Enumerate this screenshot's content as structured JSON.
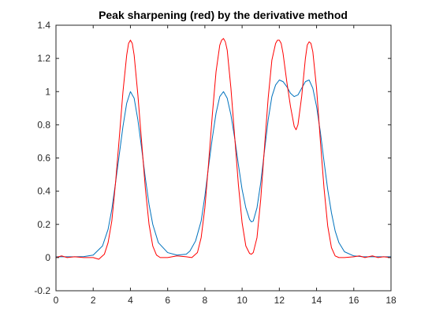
{
  "chart_data": {
    "type": "line",
    "title": "Peak sharpening (red) by the derivative method",
    "xlabel": "",
    "ylabel": "",
    "xlim": [
      0,
      18
    ],
    "ylim": [
      -0.2,
      1.4
    ],
    "x_ticks": [
      "0",
      "2",
      "4",
      "6",
      "8",
      "10",
      "12",
      "14",
      "16",
      "18"
    ],
    "y_ticks": [
      "-0.2",
      "0",
      "0.2",
      "0.4",
      "0.6",
      "0.8",
      "1",
      "1.2",
      "1.4"
    ],
    "grid": false,
    "legend": "none",
    "series": [
      {
        "color": "#0072bd",
        "x": [
          0,
          0.5,
          1,
          1.5,
          2,
          2.5,
          2.8,
          3,
          3.2,
          3.4,
          3.6,
          3.8,
          4,
          4.2,
          4.4,
          4.6,
          4.8,
          5,
          5.2,
          5.5,
          6,
          6.5,
          7,
          7.2,
          7.5,
          7.8,
          8,
          8.2,
          8.4,
          8.6,
          8.8,
          9,
          9.2,
          9.4,
          9.6,
          9.8,
          10,
          10.2,
          10.4,
          10.5,
          10.6,
          10.8,
          11,
          11.2,
          11.4,
          11.6,
          11.8,
          12,
          12.2,
          12.4,
          12.6,
          12.8,
          13,
          13.2,
          13.4,
          13.6,
          13.8,
          14,
          14.2,
          14.4,
          14.6,
          14.8,
          15,
          15.2,
          15.5,
          16,
          16.5,
          17,
          17.5,
          18
        ],
        "y": [
          0.005,
          0.005,
          0.005,
          0.006,
          0.015,
          0.07,
          0.17,
          0.29,
          0.45,
          0.62,
          0.79,
          0.93,
          1.0,
          0.96,
          0.83,
          0.66,
          0.48,
          0.32,
          0.2,
          0.09,
          0.03,
          0.015,
          0.02,
          0.04,
          0.1,
          0.22,
          0.37,
          0.55,
          0.72,
          0.87,
          0.97,
          1.0,
          0.96,
          0.86,
          0.72,
          0.56,
          0.41,
          0.3,
          0.23,
          0.215,
          0.22,
          0.3,
          0.45,
          0.64,
          0.83,
          0.97,
          1.04,
          1.07,
          1.06,
          1.03,
          0.99,
          0.97,
          0.98,
          1.02,
          1.06,
          1.07,
          1.02,
          0.91,
          0.76,
          0.58,
          0.41,
          0.27,
          0.16,
          0.09,
          0.035,
          0.01,
          0.005,
          0.005,
          0.005,
          0.005
        ]
      },
      {
        "color": "#ff0000",
        "x": [
          0,
          0.3,
          0.6,
          1,
          1.5,
          2,
          2.3,
          2.6,
          2.8,
          3,
          3.2,
          3.4,
          3.6,
          3.8,
          3.9,
          4,
          4.1,
          4.2,
          4.4,
          4.6,
          4.8,
          5,
          5.2,
          5.4,
          5.6,
          6,
          6.5,
          7,
          7.3,
          7.6,
          7.8,
          8,
          8.2,
          8.4,
          8.6,
          8.8,
          8.9,
          9,
          9.1,
          9.2,
          9.4,
          9.6,
          9.8,
          10,
          10.2,
          10.4,
          10.5,
          10.6,
          10.8,
          11,
          11.2,
          11.4,
          11.6,
          11.8,
          11.9,
          12,
          12.1,
          12.2,
          12.4,
          12.6,
          12.8,
          12.9,
          13,
          13.2,
          13.4,
          13.5,
          13.6,
          13.7,
          13.8,
          14,
          14.2,
          14.4,
          14.6,
          14.8,
          15,
          15.2,
          15.5,
          16,
          16.3,
          16.6,
          17,
          17.3,
          17.6,
          18
        ],
        "y": [
          0.0,
          0.01,
          0.0,
          0.005,
          0.0,
          0.0,
          -0.01,
          0.02,
          0.09,
          0.22,
          0.45,
          0.72,
          1.0,
          1.22,
          1.29,
          1.31,
          1.29,
          1.22,
          0.98,
          0.7,
          0.42,
          0.2,
          0.07,
          0.015,
          0.0,
          0.0,
          0.01,
          0.005,
          0.0,
          0.03,
          0.12,
          0.3,
          0.57,
          0.86,
          1.12,
          1.28,
          1.31,
          1.32,
          1.3,
          1.25,
          1.02,
          0.73,
          0.44,
          0.21,
          0.07,
          0.025,
          0.02,
          0.03,
          0.12,
          0.35,
          0.66,
          0.96,
          1.19,
          1.29,
          1.31,
          1.31,
          1.29,
          1.23,
          1.06,
          0.91,
          0.79,
          0.77,
          0.8,
          0.97,
          1.2,
          1.28,
          1.3,
          1.29,
          1.24,
          1.02,
          0.71,
          0.42,
          0.19,
          0.06,
          0.01,
          0.0,
          0.0,
          0.005,
          0.01,
          0.0,
          0.01,
          0.0,
          0.005,
          0.0
        ]
      }
    ]
  }
}
